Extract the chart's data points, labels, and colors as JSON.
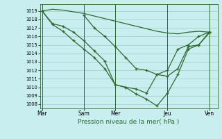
{
  "xlabel": "Pression niveau de la mer( hPa )",
  "bg_color": "#c8eef0",
  "line_color": "#2d6a2d",
  "grid_color": "#9bbfbf",
  "ylim": [
    1007.5,
    1019.8
  ],
  "yticks": [
    1008,
    1009,
    1010,
    1011,
    1012,
    1013,
    1014,
    1015,
    1016,
    1017,
    1018,
    1019
  ],
  "xlim": [
    -0.2,
    16.8
  ],
  "day_lines_x": [
    0,
    4,
    7,
    12,
    16
  ],
  "day_labels": [
    "Mar",
    "Sam",
    "Mer",
    "Jeu",
    "Ven"
  ],
  "series": [
    {
      "x": [
        0,
        1,
        2,
        3,
        4,
        5,
        6,
        7,
        8,
        9,
        10,
        11,
        12,
        13,
        14,
        15,
        16
      ],
      "y": [
        1019.0,
        1019.2,
        1019.1,
        1018.9,
        1018.7,
        1018.4,
        1018.1,
        1017.8,
        1017.5,
        1017.2,
        1016.9,
        1016.6,
        1016.4,
        1016.3,
        1016.5,
        1016.6,
        1016.5
      ],
      "marker": false,
      "lw": 0.9
    },
    {
      "x": [
        0,
        1,
        2,
        3,
        4,
        5,
        6,
        7,
        8,
        9,
        10,
        11,
        12,
        13,
        14,
        15,
        16
      ],
      "y": [
        1019.0,
        1017.5,
        1017.2,
        1016.5,
        1015.5,
        1014.3,
        1013.1,
        1010.3,
        1010.0,
        1009.2,
        1008.6,
        1007.8,
        1009.3,
        1011.5,
        1014.5,
        1015.0,
        1016.5
      ],
      "marker": true,
      "lw": 0.9
    },
    {
      "x": [
        0,
        1,
        2,
        3,
        4,
        5,
        6,
        7,
        8,
        9,
        10,
        11,
        12,
        13,
        14,
        15,
        16
      ],
      "y": [
        1019.0,
        1017.4,
        1016.6,
        1015.5,
        1014.5,
        1013.5,
        1012.2,
        1010.3,
        1010.0,
        1009.8,
        1009.3,
        1011.5,
        1011.3,
        1012.2,
        1014.8,
        1015.0,
        1016.4
      ],
      "marker": true,
      "lw": 0.9
    },
    {
      "x": [
        4,
        5,
        6,
        7,
        8,
        9,
        10,
        11,
        12,
        13,
        14,
        15,
        16
      ],
      "y": [
        1018.5,
        1017.0,
        1016.0,
        1014.8,
        1013.5,
        1012.2,
        1012.0,
        1011.5,
        1012.0,
        1014.5,
        1015.0,
        1016.0,
        1016.5
      ],
      "marker": true,
      "lw": 0.9
    }
  ]
}
